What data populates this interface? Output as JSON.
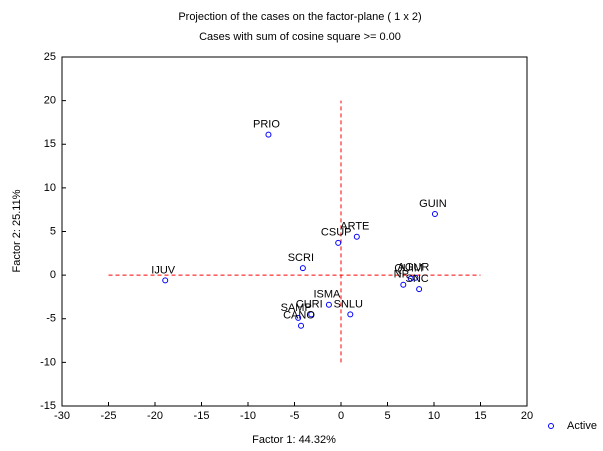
{
  "chart_data": {
    "type": "scatter",
    "title": "Projection of the cases on the factor-plane (  1 x   2)",
    "subtitle": "Cases with sum of cosine square >=  0.00",
    "x_label": "Factor 1: 44.32%",
    "y_label": "Factor 2: 25.11%",
    "xlim": [
      -30,
      20
    ],
    "ylim": [
      -15,
      25
    ],
    "xticks": [
      -30,
      -25,
      -20,
      -15,
      -10,
      -5,
      0,
      5,
      10,
      15,
      20
    ],
    "yticks": [
      -15,
      -10,
      -5,
      0,
      5,
      10,
      15,
      20,
      25
    ],
    "reference_lines": {
      "color": "#ff0000",
      "horizontal": {
        "y": 0,
        "xrange": [
          -25,
          15
        ]
      },
      "vertical": {
        "x": 0,
        "yrange": [
          -10,
          20
        ]
      }
    },
    "legend": "bottom-right",
    "series": [
      {
        "name": "Active",
        "color": "#0000ff",
        "labels": [
          "PRIO",
          "GUIN",
          "ARTE",
          "CSUP",
          "SCRI",
          "IJUV",
          "NP",
          "QUIM",
          "AGUR",
          "SNC",
          "ISMA",
          "CURI",
          "SAMP",
          "CANO",
          "SNLU"
        ],
        "x": [
          -7.8,
          10.1,
          1.7,
          -0.3,
          -4.1,
          -18.9,
          6.7,
          7.5,
          8.0,
          8.4,
          -1.3,
          -3.2,
          -4.6,
          -4.3,
          1.0
        ],
        "y": [
          16.1,
          7.0,
          4.4,
          3.7,
          0.8,
          -0.6,
          -1.1,
          -0.4,
          -0.3,
          -1.6,
          -3.4,
          -4.5,
          -4.9,
          -5.8,
          -4.5
        ]
      }
    ]
  }
}
